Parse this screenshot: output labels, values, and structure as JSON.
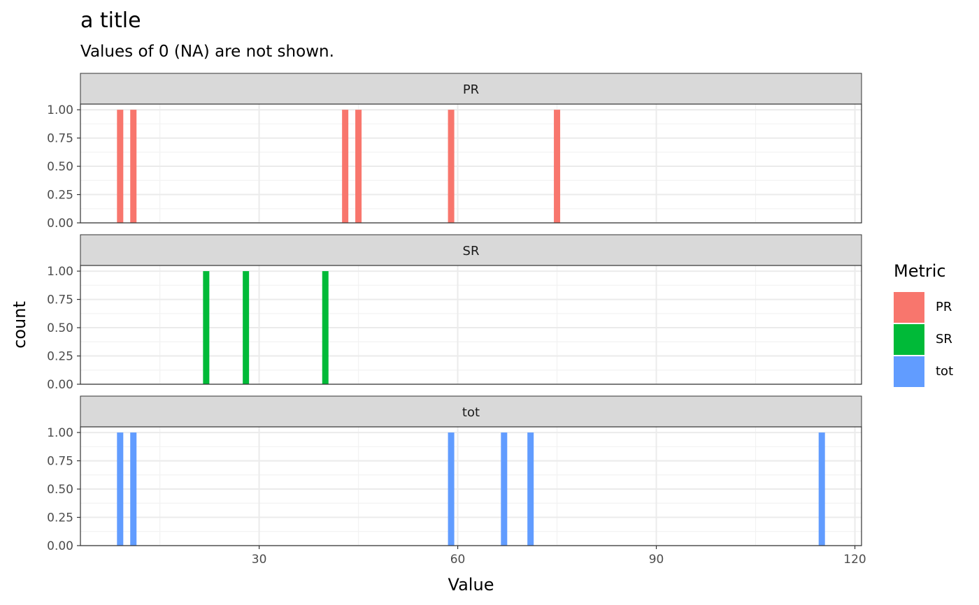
{
  "chart_data": {
    "type": "bar",
    "title": "a title",
    "subtitle": "Values of 0 (NA) are not shown.",
    "xlabel": "Value",
    "ylabel": "count",
    "xlim": [
      3,
      121
    ],
    "ylim": [
      0,
      1.05
    ],
    "x_ticks": [
      30,
      60,
      90,
      120
    ],
    "y_ticks": [
      "0.00",
      "0.25",
      "0.50",
      "0.75",
      "1.00"
    ],
    "grid": true,
    "legend": {
      "title": "Metric",
      "placement": "right",
      "entries": [
        {
          "name": "PR",
          "color": "#F8766D"
        },
        {
          "name": "SR",
          "color": "#00BA38"
        },
        {
          "name": "tot",
          "color": "#619CFF"
        }
      ]
    },
    "panels": [
      {
        "strip": "PR",
        "color": "#F8766D",
        "x": [
          9,
          11,
          43,
          45,
          59,
          75
        ],
        "count": [
          1,
          1,
          1,
          1,
          1,
          1
        ]
      },
      {
        "strip": "SR",
        "color": "#00BA38",
        "x": [
          22,
          28,
          40
        ],
        "count": [
          1,
          1,
          1
        ]
      },
      {
        "strip": "tot",
        "color": "#619CFF",
        "x": [
          9,
          11,
          59,
          67,
          71,
          115
        ],
        "count": [
          1,
          1,
          1,
          1,
          1,
          1
        ]
      }
    ]
  }
}
